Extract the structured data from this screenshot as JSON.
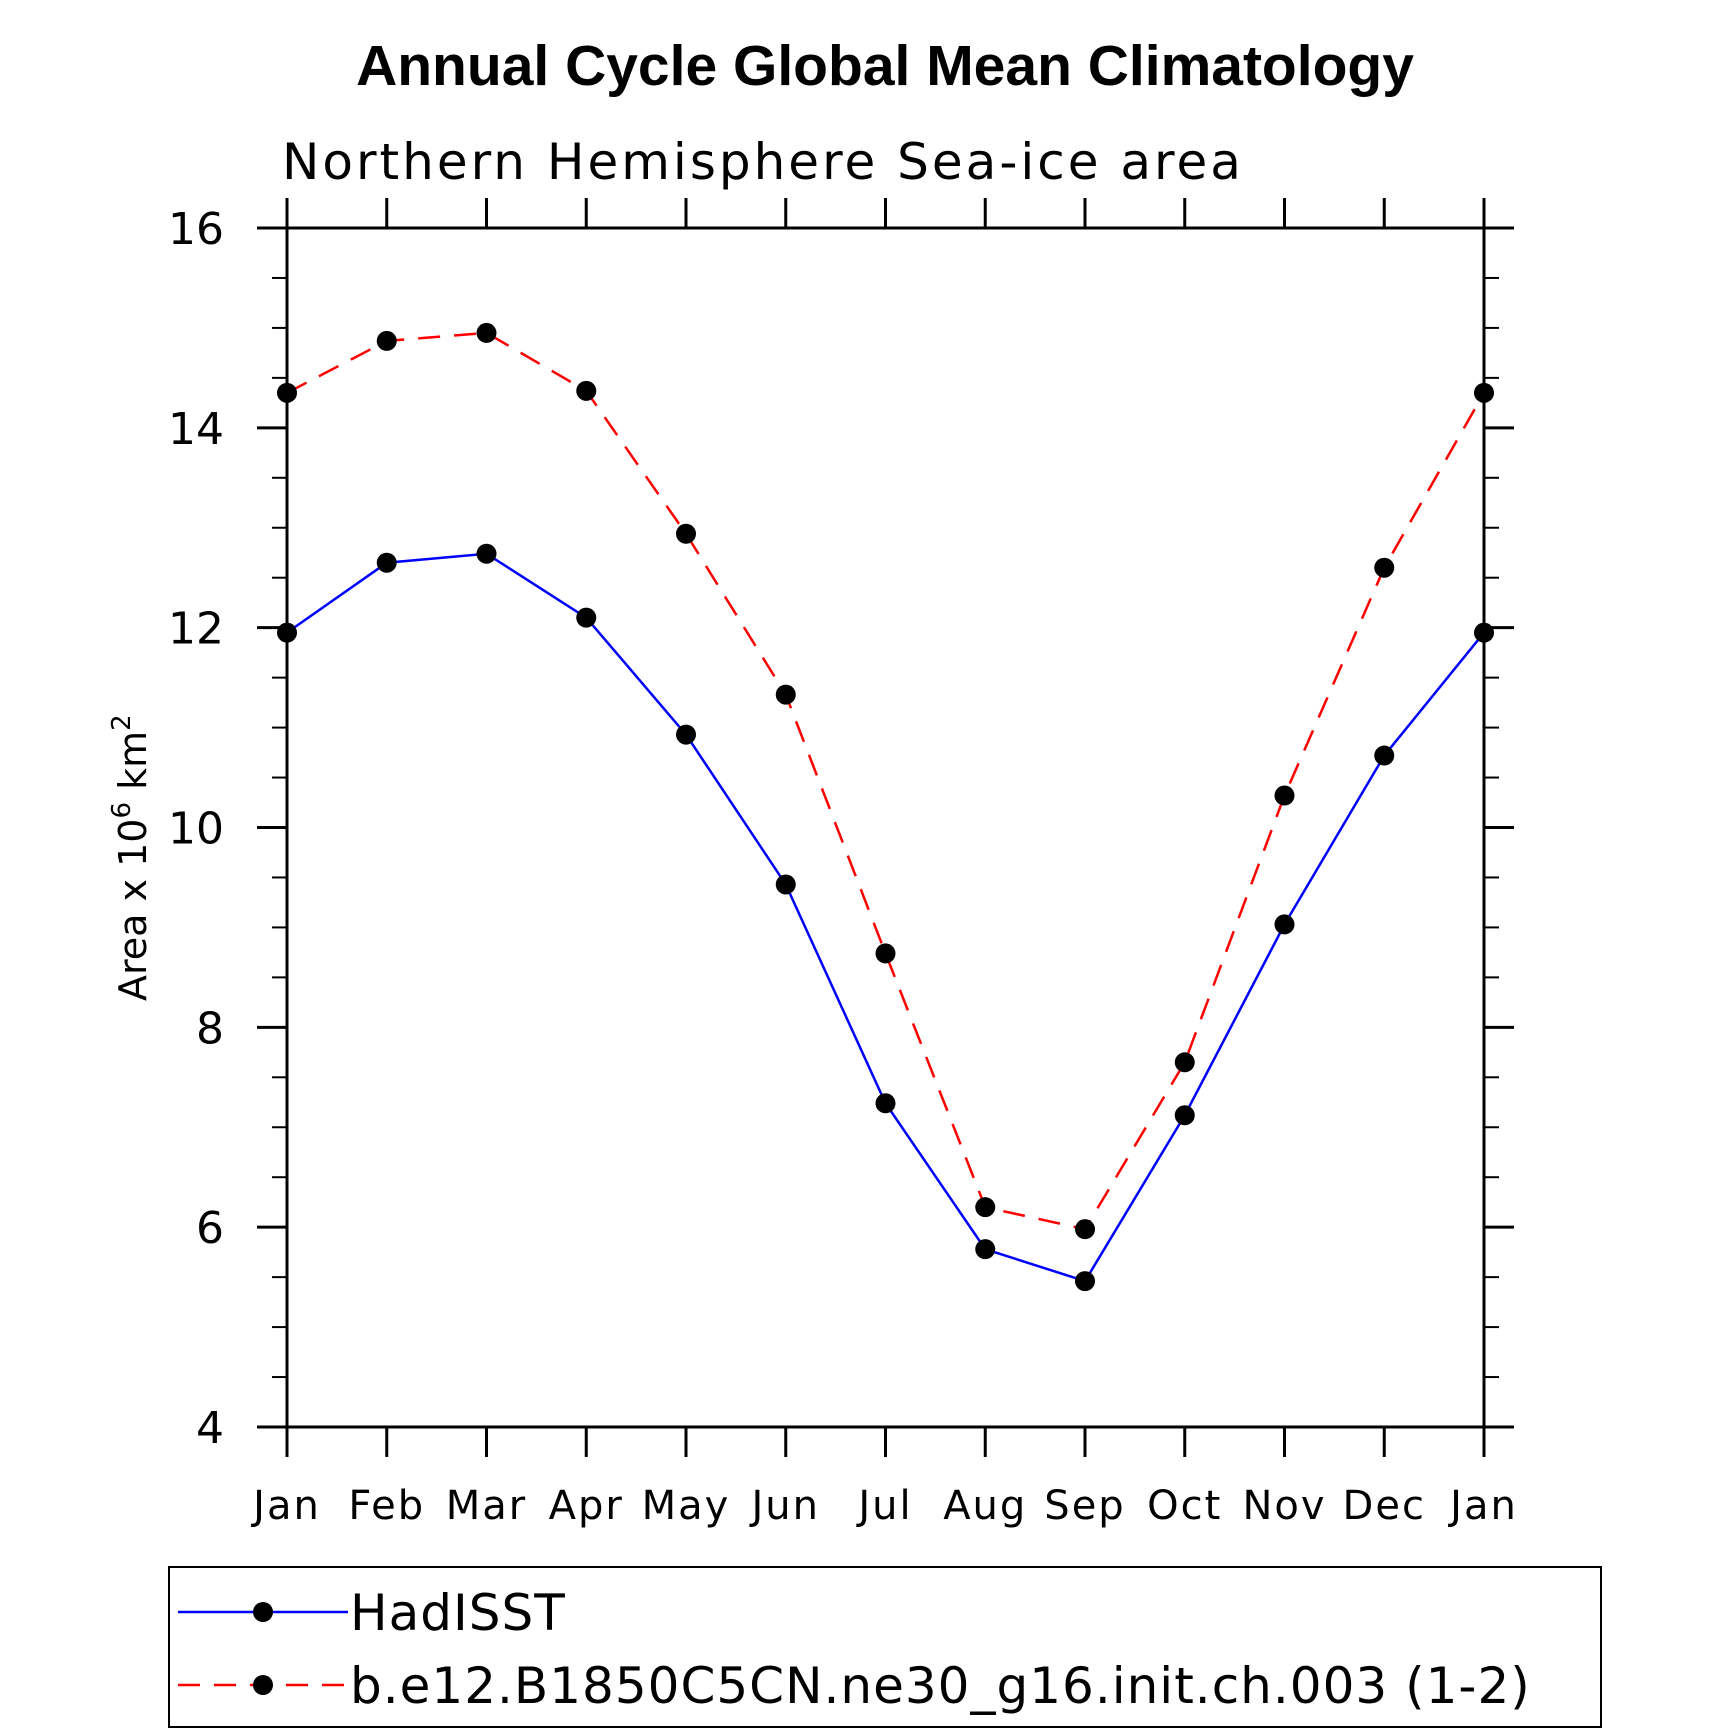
{
  "chart_data": {
    "type": "line",
    "title": "Annual Cycle Global Mean Climatology",
    "subtitle": "Northern Hemisphere Sea-ice area",
    "ylabel_main": "Area x 10",
    "ylabel_sup1": "6",
    "ylabel_unit": " km",
    "ylabel_sup2": "2",
    "categories": [
      "Jan",
      "Feb",
      "Mar",
      "Apr",
      "May",
      "Jun",
      "Jul",
      "Aug",
      "Sep",
      "Oct",
      "Nov",
      "Dec",
      "Jan"
    ],
    "ylim": [
      4,
      16
    ],
    "yticks": [
      4,
      6,
      8,
      10,
      12,
      14,
      16
    ],
    "ytick_labels": [
      "4",
      "6",
      "8",
      "10",
      "12",
      "14",
      "16"
    ],
    "grid": false,
    "legend_position": "bottom",
    "series": [
      {
        "name": "HadISST",
        "color": "#0000ff",
        "dash": "solid",
        "marker": "filled-circle",
        "values": [
          11.95,
          12.65,
          12.74,
          12.1,
          10.93,
          9.43,
          7.24,
          5.78,
          5.46,
          7.12,
          9.03,
          10.72,
          11.95
        ]
      },
      {
        "name": "b.e12.B1850C5CN.ne30_g16.init.ch.003 (1-2)",
        "color": "#ff0000",
        "dash": "dashed",
        "marker": "filled-circle",
        "values": [
          14.35,
          14.87,
          14.95,
          14.37,
          12.94,
          11.33,
          8.74,
          6.2,
          5.98,
          7.65,
          10.32,
          12.6,
          14.35
        ]
      }
    ]
  }
}
